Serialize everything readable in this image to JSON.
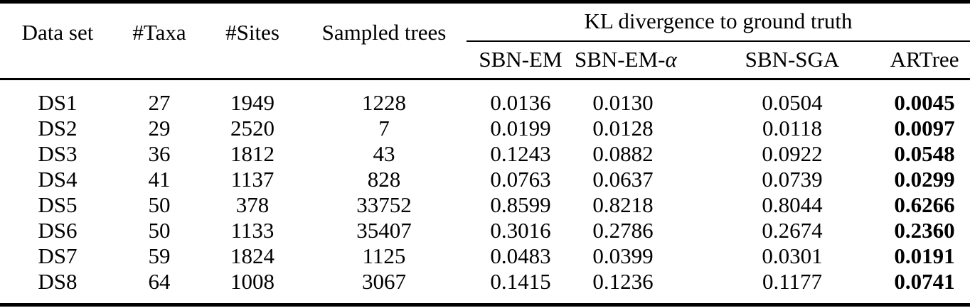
{
  "table": {
    "header": {
      "dataset": "Data set",
      "taxa": "#Taxa",
      "sites": "#Sites",
      "sampled_trees": "Sampled trees",
      "kl_group_title": "KL divergence to ground truth",
      "methods": [
        {
          "label": "SBN-EM"
        },
        {
          "prefix": "SBN-EM-",
          "symbol": "α"
        },
        {
          "label": "SBN-SGA"
        },
        {
          "label": "ARTree"
        }
      ]
    },
    "rows": [
      [
        "DS1",
        "27",
        "1949",
        "1228",
        "0.0136",
        "0.0130",
        "0.0504",
        "0.0045"
      ],
      [
        "DS2",
        "29",
        "2520",
        "7",
        "0.0199",
        "0.0128",
        "0.0118",
        "0.0097"
      ],
      [
        "DS3",
        "36",
        "1812",
        "43",
        "0.1243",
        "0.0882",
        "0.0922",
        "0.0548"
      ],
      [
        "DS4",
        "41",
        "1137",
        "828",
        "0.0763",
        "0.0637",
        "0.0739",
        "0.0299"
      ],
      [
        "DS5",
        "50",
        "378",
        "33752",
        "0.8599",
        "0.8218",
        "0.8044",
        "0.6266"
      ],
      [
        "DS6",
        "50",
        "1133",
        "35407",
        "0.3016",
        "0.2786",
        "0.2674",
        "0.2360"
      ],
      [
        "DS7",
        "59",
        "1824",
        "1125",
        "0.0483",
        "0.0399",
        "0.0301",
        "0.0191"
      ],
      [
        "DS8",
        "64",
        "1008",
        "3067",
        "0.1415",
        "0.1236",
        "0.1177",
        "0.0741"
      ]
    ],
    "emphasis": {
      "bold_column": "ARTree"
    }
  },
  "colors": {
    "text": "#000000",
    "rule": "#000000",
    "background": "#ffffff"
  }
}
